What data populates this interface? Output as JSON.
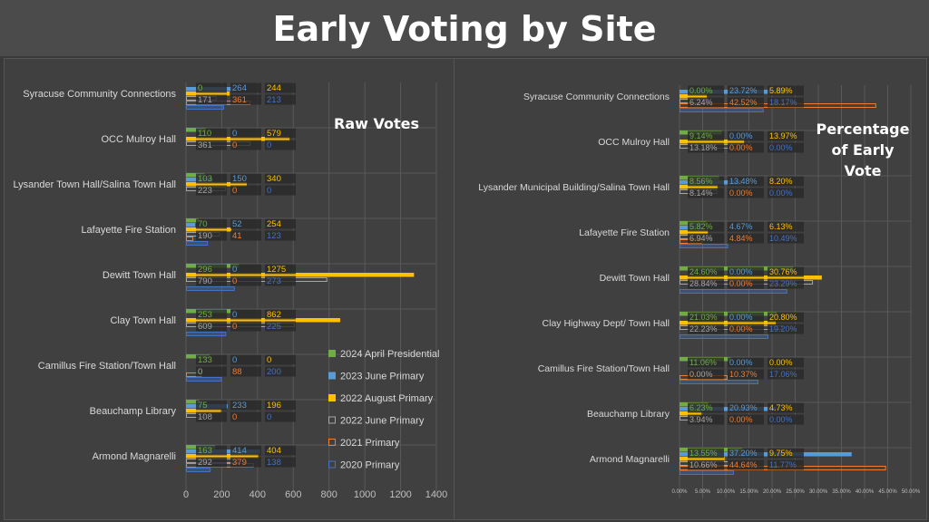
{
  "title": "Early Voting by Site",
  "chart_data": [
    {
      "type": "bar",
      "orientation": "horizontal",
      "title": "Raw Votes",
      "categories": [
        "Syracuse Community Connections",
        "OCC Mulroy Hall",
        "Lysander Town Hall/Salina Town Hall",
        "Lafayette Fire Station",
        "Dewitt Town Hall",
        "Clay Town Hall",
        "Camillus Fire Station/Town Hall",
        "Beauchamp Library",
        "Armond Magnarelli"
      ],
      "xlim": [
        0,
        1400
      ],
      "xticks": [
        "0",
        "200",
        "400",
        "600",
        "800",
        "1000",
        "1200",
        "1400"
      ],
      "grid": true,
      "legend": "right",
      "series": [
        {
          "name": "2024 April Presidential",
          "values": [
            0,
            110,
            103,
            70,
            296,
            253,
            133,
            75,
            163
          ]
        },
        {
          "name": "2023 June Primary",
          "values": [
            264,
            0,
            150,
            52,
            0,
            0,
            0,
            233,
            414
          ]
        },
        {
          "name": "2022 August Primary",
          "values": [
            244,
            579,
            340,
            254,
            1275,
            862,
            0,
            196,
            404
          ]
        },
        {
          "name": "2022 June Primary",
          "values": [
            171,
            361,
            223,
            190,
            790,
            609,
            0,
            108,
            292
          ]
        },
        {
          "name": "2021 Primary",
          "values": [
            361,
            0,
            0,
            41,
            0,
            0,
            88,
            0,
            379
          ]
        },
        {
          "name": "2020 Primary",
          "values": [
            213,
            0,
            0,
            123,
            273,
            225,
            200,
            0,
            138
          ]
        }
      ]
    },
    {
      "type": "bar",
      "orientation": "horizontal",
      "title": "Percentage of Early Vote",
      "categories": [
        "Syracuse Community Connections",
        "OCC Mulroy Hall",
        "Lysander Municipal Building/Salina Town Hall",
        "Lafayette Fire Station",
        "Dewitt Town Hall",
        "Clay Highway Dept/ Town Hall",
        "Camillus Fire Station/Town Hall",
        "Beauchamp Library",
        "Armond Magnarelli"
      ],
      "xlim": [
        0,
        50
      ],
      "xticks": [
        "0.00%",
        "5.00%",
        "10.00%",
        "15.00%",
        "20.00%",
        "25.00%",
        "30.00%",
        "35.00%",
        "40.00%",
        "45.00%",
        "50.00%"
      ],
      "grid": true,
      "series": [
        {
          "name": "2024 April Presidential",
          "values": [
            0,
            9.14,
            8.56,
            5.82,
            24.6,
            21.03,
            11.06,
            6.23,
            13.55
          ]
        },
        {
          "name": "2023 June Primary",
          "values": [
            23.72,
            0,
            13.48,
            4.67,
            0,
            0,
            0,
            20.93,
            37.2
          ]
        },
        {
          "name": "2022 August Primary",
          "values": [
            5.89,
            13.97,
            8.2,
            6.13,
            30.76,
            20.8,
            0,
            4.73,
            9.75
          ]
        },
        {
          "name": "2022 June Primary",
          "values": [
            6.24,
            13.18,
            8.14,
            6.94,
            28.84,
            22.23,
            0,
            3.94,
            10.66
          ]
        },
        {
          "name": "2021 Primary",
          "values": [
            42.52,
            0,
            0,
            4.84,
            0,
            0,
            10.37,
            0,
            44.64
          ]
        },
        {
          "name": "2020 Primary",
          "values": [
            18.17,
            0,
            0,
            10.49,
            23.29,
            19.2,
            17.06,
            0,
            11.77
          ]
        }
      ]
    }
  ],
  "colors": {
    "2024 April Presidential": "#70ad47",
    "2023 June Primary": "#5b9bd5",
    "2022 August Primary": "#ffc000",
    "2022 June Primary": "#a5a5a5",
    "2021 Primary": "#ed7d31",
    "2020 Primary": "#4472c4"
  }
}
